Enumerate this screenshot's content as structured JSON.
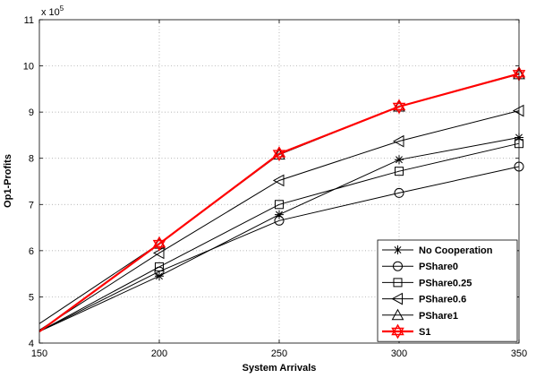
{
  "chart_data": {
    "type": "line",
    "title": "",
    "xlabel": "System Arrivals",
    "ylabel": "Op1-Profits",
    "y_multiplier": "x 10",
    "y_exponent": "5",
    "xlim": [
      150,
      350
    ],
    "ylim": [
      4,
      11
    ],
    "xticks": [
      150,
      200,
      250,
      300,
      350
    ],
    "yticks": [
      4,
      5,
      6,
      7,
      8,
      9,
      10,
      11
    ],
    "grid": true,
    "legend_position": "bottom-right",
    "x": [
      150,
      200,
      250,
      300,
      350
    ],
    "series": [
      {
        "name": "No Cooperation",
        "marker": "star",
        "color": "#000000",
        "values": [
          4.25,
          5.45,
          6.78,
          7.97,
          8.45
        ]
      },
      {
        "name": "PShare0",
        "marker": "circle",
        "color": "#000000",
        "values": [
          4.25,
          5.55,
          6.65,
          7.25,
          7.82
        ]
      },
      {
        "name": "PShare0.25",
        "marker": "square",
        "color": "#000000",
        "values": [
          4.25,
          5.65,
          7.0,
          7.72,
          8.32
        ]
      },
      {
        "name": "PShare0.6",
        "marker": "triangle-left",
        "color": "#000000",
        "values": [
          4.28,
          5.95,
          7.52,
          8.37,
          9.03
        ]
      },
      {
        "name": "PShare1",
        "marker": "triangle-up",
        "color": "#000000",
        "values": [
          4.42,
          6.15,
          8.08,
          9.12,
          9.82
        ]
      },
      {
        "name": "S1",
        "marker": "hexagram",
        "color": "#ff0000",
        "values": [
          4.25,
          6.15,
          8.1,
          9.12,
          9.83
        ]
      }
    ]
  }
}
